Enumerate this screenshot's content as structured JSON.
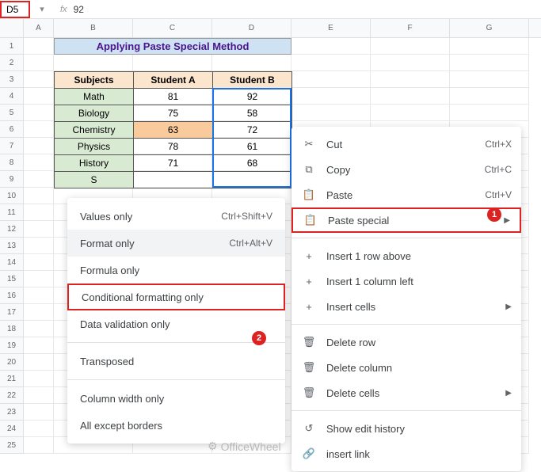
{
  "formula_bar": {
    "cell_ref": "D5",
    "fx_label": "fx",
    "value": "92"
  },
  "columns": [
    "A",
    "B",
    "C",
    "D",
    "E",
    "F",
    "G"
  ],
  "rows": [
    "1",
    "2",
    "3",
    "4",
    "5",
    "6",
    "7",
    "8",
    "9",
    "10",
    "11",
    "12",
    "13",
    "14",
    "15",
    "16",
    "17",
    "18",
    "19",
    "20",
    "21",
    "22",
    "23",
    "24",
    "25"
  ],
  "title": "Applying Paste Special Method",
  "table": {
    "headers": [
      "Subjects",
      "Student A",
      "Student B"
    ],
    "rows": [
      {
        "subject": "Math",
        "a": "81",
        "b": "92",
        "a_hl": false
      },
      {
        "subject": "Biology",
        "a": "75",
        "b": "58",
        "a_hl": false
      },
      {
        "subject": "Chemistry",
        "a": "63",
        "b": "72",
        "a_hl": true
      },
      {
        "subject": "Physics",
        "a": "78",
        "b": "61",
        "a_hl": false
      },
      {
        "subject": "History",
        "a": "71",
        "b": "68",
        "a_hl": false
      },
      {
        "subject": "S",
        "a": "",
        "b": "",
        "a_hl": false
      }
    ]
  },
  "context_menu": {
    "items": [
      {
        "icon": "✂",
        "label": "Cut",
        "shortcut": "Ctrl+X",
        "arrow": false
      },
      {
        "icon": "⧉",
        "label": "Copy",
        "shortcut": "Ctrl+C",
        "arrow": false
      },
      {
        "icon": "📋",
        "label": "Paste",
        "shortcut": "Ctrl+V",
        "arrow": false
      },
      {
        "icon": "📋",
        "label": "Paste special",
        "shortcut": "",
        "arrow": true,
        "highlight": true
      }
    ],
    "items2": [
      {
        "icon": "+",
        "label": "Insert 1 row above",
        "shortcut": "",
        "arrow": false
      },
      {
        "icon": "+",
        "label": "Insert 1 column left",
        "shortcut": "",
        "arrow": false
      },
      {
        "icon": "+",
        "label": "Insert cells",
        "shortcut": "",
        "arrow": true
      }
    ],
    "items3": [
      {
        "icon": "🗑",
        "label": "Delete row",
        "shortcut": "",
        "arrow": false
      },
      {
        "icon": "🗑",
        "label": "Delete column",
        "shortcut": "",
        "arrow": false
      },
      {
        "icon": "🗑",
        "label": "Delete cells",
        "shortcut": "",
        "arrow": true
      }
    ],
    "items4": [
      {
        "icon": "↺",
        "label": "Show edit history",
        "shortcut": "",
        "arrow": false
      },
      {
        "icon": "🔗",
        "label": "insert link",
        "shortcut": "",
        "arrow": false
      }
    ]
  },
  "submenu": {
    "items": [
      {
        "label": "Values only",
        "shortcut": "Ctrl+Shift+V"
      },
      {
        "label": "Format only",
        "shortcut": "Ctrl+Alt+V",
        "hover": true
      },
      {
        "label": "Formula only",
        "shortcut": ""
      },
      {
        "label": "Conditional formatting only",
        "shortcut": "",
        "highlight": true
      },
      {
        "label": "Data validation only",
        "shortcut": ""
      }
    ],
    "items2": [
      {
        "label": "Transposed",
        "shortcut": ""
      }
    ],
    "items3": [
      {
        "label": "Column width only",
        "shortcut": ""
      },
      {
        "label": "All except borders",
        "shortcut": ""
      }
    ]
  },
  "badges": {
    "first": "1",
    "second": "2"
  },
  "watermark": "OfficeWheel"
}
